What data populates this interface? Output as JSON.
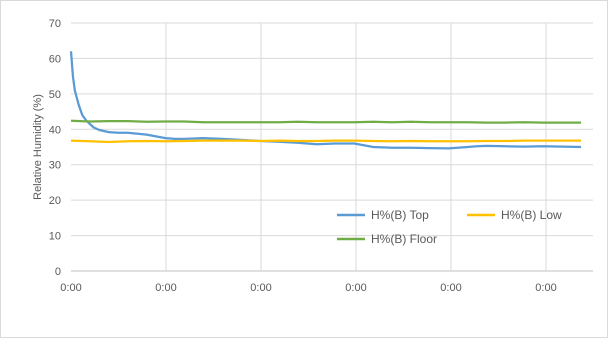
{
  "chart_data": {
    "type": "line",
    "title": "",
    "xlabel": "",
    "ylabel": "Relative Humidity (%)",
    "ylim": [
      0,
      70
    ],
    "yticks": [
      0,
      10,
      20,
      30,
      40,
      50,
      60,
      70
    ],
    "xtick_labels": [
      "0:00",
      "0:00",
      "0:00",
      "0:00",
      "0:00",
      "0:00"
    ],
    "x_range": [
      0,
      270
    ],
    "grid": true,
    "legend_position": "bottom-right",
    "series": [
      {
        "name": "H%(B) Top",
        "color": "#5b9bd5",
        "x": [
          0,
          1,
          2,
          4,
          6,
          8,
          10,
          12,
          15,
          20,
          25,
          30,
          40,
          50,
          55,
          60,
          70,
          80,
          90,
          100,
          110,
          120,
          130,
          140,
          145,
          150,
          160,
          170,
          180,
          190,
          200,
          210,
          215,
          220,
          230,
          240,
          250,
          260,
          270
        ],
        "values": [
          62,
          55,
          51,
          47,
          44,
          42.5,
          41.5,
          40.5,
          39.8,
          39.2,
          39,
          39,
          38.5,
          37.5,
          37.3,
          37.3,
          37.5,
          37.3,
          37,
          36.7,
          36.5,
          36.2,
          35.8,
          36,
          36,
          36,
          35,
          34.8,
          34.8,
          34.7,
          34.6,
          35,
          35.2,
          35.3,
          35.2,
          35.1,
          35.2,
          35.1,
          35
        ]
      },
      {
        "name": "H%(B) Low",
        "color": "#ffc000",
        "x": [
          0,
          10,
          20,
          30,
          40,
          50,
          60,
          70,
          80,
          90,
          100,
          110,
          120,
          130,
          140,
          150,
          160,
          170,
          180,
          190,
          200,
          210,
          220,
          230,
          240,
          250,
          260,
          270
        ],
        "values": [
          36.8,
          36.6,
          36.4,
          36.6,
          36.7,
          36.6,
          36.7,
          36.8,
          36.8,
          36.8,
          36.7,
          36.8,
          36.7,
          36.7,
          36.8,
          36.8,
          36.7,
          36.6,
          36.7,
          36.6,
          36.6,
          36.6,
          36.7,
          36.7,
          36.8,
          36.8,
          36.8,
          36.8
        ]
      },
      {
        "name": "H%(B) Floor",
        "color": "#70ad47",
        "x": [
          0,
          10,
          20,
          30,
          40,
          50,
          60,
          70,
          80,
          90,
          100,
          110,
          120,
          130,
          140,
          150,
          160,
          170,
          180,
          190,
          200,
          210,
          220,
          230,
          240,
          250,
          260,
          270
        ],
        "values": [
          42.4,
          42.2,
          42.3,
          42.3,
          42.1,
          42.2,
          42.2,
          42,
          42,
          42,
          42,
          42,
          42.1,
          42,
          42,
          42,
          42.1,
          42,
          42.1,
          42,
          42,
          42,
          41.9,
          41.9,
          42,
          41.9,
          41.9,
          41.9
        ]
      }
    ]
  }
}
